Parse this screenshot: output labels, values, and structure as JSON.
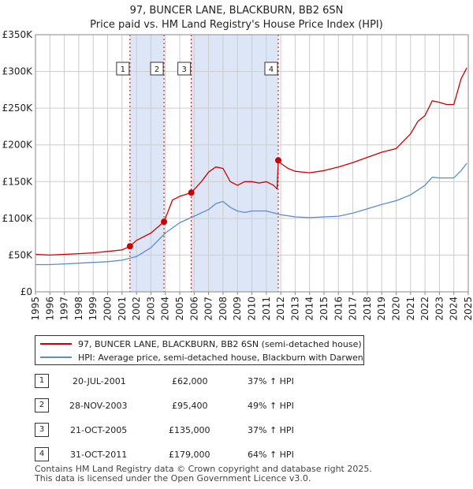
{
  "title": "97, BUNCER LANE, BLACKBURN, BB2 6SN",
  "subtitle": "Price paid vs. HM Land Registry's House Price Index (HPI)",
  "colors": {
    "property": "#cc0000",
    "hpi": "#5b8dc9",
    "shade": "#dde6f7",
    "grid": "#cccccc"
  },
  "legend": {
    "property": "97, BUNCER LANE, BLACKBURN, BB2 6SN (semi-detached house)",
    "hpi": "HPI: Average price, semi-detached house, Blackburn with Darwen"
  },
  "transactions": [
    {
      "num": "1",
      "date": "20-JUL-2001",
      "price": "£62,000",
      "hpi": "37% ↑ HPI"
    },
    {
      "num": "2",
      "date": "28-NOV-2003",
      "price": "£95,400",
      "hpi": "49% ↑ HPI"
    },
    {
      "num": "3",
      "date": "21-OCT-2005",
      "price": "£135,000",
      "hpi": "37% ↑ HPI"
    },
    {
      "num": "4",
      "date": "31-OCT-2011",
      "price": "£179,000",
      "hpi": "64% ↑ HPI"
    }
  ],
  "footer": {
    "line1": "Contains HM Land Registry data © Crown copyright and database right 2025.",
    "line2": "This data is licensed under the Open Government Licence v3.0."
  },
  "chart_data": {
    "type": "line",
    "title": "97, BUNCER LANE, BLACKBURN, BB2 6SN",
    "subtitle": "Price paid vs. HM Land Registry's House Price Index (HPI)",
    "xlabel": "",
    "ylabel": "",
    "xlim": [
      1995,
      2025
    ],
    "ylim": [
      0,
      350000
    ],
    "grid": true,
    "legend_position": "bottom",
    "y_ticks": [
      0,
      50000,
      100000,
      150000,
      200000,
      250000,
      300000,
      350000
    ],
    "y_tick_labels": [
      "£0",
      "£50K",
      "£100K",
      "£150K",
      "£200K",
      "£250K",
      "£300K",
      "£350K"
    ],
    "x_ticks": [
      "1995",
      "1996",
      "1997",
      "1998",
      "1999",
      "2000",
      "2001",
      "2002",
      "2003",
      "2004",
      "2005",
      "2006",
      "2007",
      "2008",
      "2009",
      "2010",
      "2011",
      "2012",
      "2013",
      "2014",
      "2015",
      "2016",
      "2017",
      "2018",
      "2019",
      "2020",
      "2021",
      "2022",
      "2023",
      "2024",
      "2025"
    ],
    "shaded_ranges": [
      [
        2001.55,
        2003.91
      ],
      [
        2005.8,
        2011.83
      ]
    ],
    "sales": [
      {
        "label": "1",
        "x": 2001.55,
        "y": 62000
      },
      {
        "label": "2",
        "x": 2003.91,
        "y": 95400
      },
      {
        "label": "3",
        "x": 2005.8,
        "y": 135000
      },
      {
        "label": "4",
        "x": 2011.83,
        "y": 179000
      }
    ],
    "series": [
      {
        "name": "97, BUNCER LANE, BLACKBURN, BB2 6SN (semi-detached house)",
        "x": [
          1995,
          1996,
          1997,
          1998,
          1999,
          2000,
          2001,
          2001.55,
          2002,
          2003,
          2003.91,
          2004.5,
          2005,
          2005.8,
          2006.5,
          2007,
          2007.5,
          2008,
          2008.5,
          2009,
          2009.5,
          2010,
          2010.5,
          2011,
          2011.5,
          2011.75,
          2011.83,
          2012,
          2012.5,
          2013,
          2014,
          2015,
          2016,
          2017,
          2018,
          2019,
          2020,
          2020.5,
          2021,
          2021.5,
          2022,
          2022.5,
          2023,
          2023.5,
          2024,
          2024.5,
          2024.9
        ],
        "values": [
          51000,
          50000,
          51000,
          52000,
          53000,
          55000,
          57000,
          62000,
          70000,
          80000,
          95400,
          125000,
          130000,
          135000,
          150000,
          163000,
          170000,
          168000,
          150000,
          145000,
          150000,
          150000,
          148000,
          150000,
          145000,
          140000,
          179000,
          175000,
          168000,
          164000,
          162000,
          165000,
          170000,
          176000,
          183000,
          190000,
          195000,
          205000,
          215000,
          232000,
          240000,
          260000,
          258000,
          255000,
          255000,
          290000,
          305000
        ]
      },
      {
        "name": "HPI: Average price, semi-detached house, Blackburn with Darwen",
        "x": [
          1995,
          1996,
          1997,
          1998,
          1999,
          2000,
          2001,
          2002,
          2003,
          2004,
          2005,
          2006,
          2007,
          2007.5,
          2008,
          2008.5,
          2009,
          2009.5,
          2010,
          2011,
          2012,
          2013,
          2014,
          2015,
          2016,
          2017,
          2018,
          2019,
          2020,
          2021,
          2022,
          2022.5,
          2023,
          2024,
          2024.5,
          2024.9
        ],
        "values": [
          37000,
          37000,
          38000,
          39000,
          40000,
          41000,
          43000,
          48000,
          60000,
          80000,
          94000,
          103000,
          112000,
          120000,
          123000,
          115000,
          110000,
          108000,
          110000,
          110000,
          105000,
          102000,
          101000,
          102000,
          103000,
          107000,
          113000,
          119000,
          124000,
          132000,
          145000,
          156000,
          155000,
          155000,
          165000,
          175000
        ]
      }
    ]
  }
}
